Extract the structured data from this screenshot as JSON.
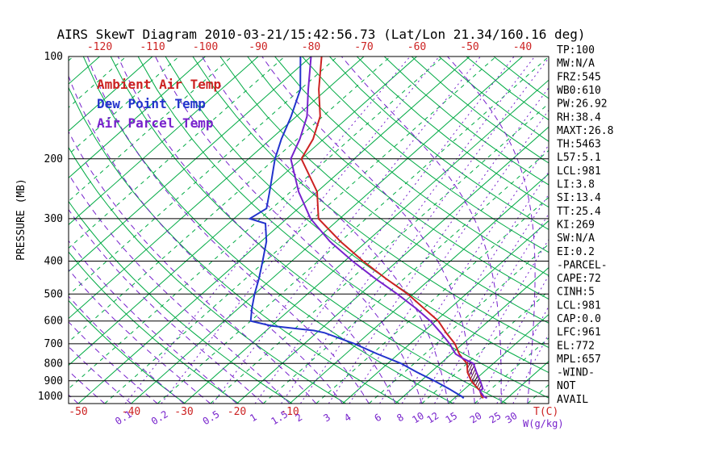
{
  "title": "AIRS SkewT Diagram 2010-03-21/15:42:56.73 (Lat/Lon 21.34/160.16 deg)",
  "legend": {
    "ambient": {
      "label": "Ambient Air Temp",
      "color": "#cc2222"
    },
    "dewpoint": {
      "label": "Dew Point Temp",
      "color": "#2233cc"
    },
    "parcel": {
      "label": "Air Parcel Temp",
      "color": "#7722cc"
    }
  },
  "axes": {
    "ylabel": "PRESSURE (MB)",
    "temp_unit_label": "T(C)",
    "mixing_unit_label": "W(g/kg)",
    "pressure_ticks": [
      100,
      200,
      300,
      400,
      500,
      600,
      700,
      800,
      900,
      1000
    ],
    "top_temp_ticks": [
      -120,
      -110,
      -100,
      -90,
      -80,
      -70,
      -60,
      -50,
      -40
    ],
    "bottom_temp_ticks": [
      -50,
      -40,
      -30,
      -20,
      -10
    ],
    "mixing_ratio_ticks": [
      0.1,
      0.2,
      0.5,
      1,
      1.5,
      2,
      3,
      4,
      6,
      8,
      10,
      12,
      15,
      20,
      25,
      30
    ],
    "temp_tick_color": "#cc2222",
    "mixing_tick_color": "#7722cc",
    "pressure_range_mb": [
      100,
      1050
    ]
  },
  "stats": [
    "TP:100",
    "MW:N/A",
    "FRZ:545",
    "WB0:610",
    "PW:26.92",
    "RH:38.4",
    "MAXT:26.8",
    "TH:5463",
    "L57:5.1",
    "LCL:981",
    "LI:3.8",
    "SI:13.4",
    "TT:25.4",
    "KI:269",
    "SW:N/A",
    "EI:0.2",
    "-PARCEL-",
    "CAPE:72",
    "CINH:5",
    "LCL:981",
    "CAP:0.0",
    "LFC:961",
    "EL:772",
    "MPL:657",
    "-WIND-",
    "NOT",
    "AVAIL"
  ],
  "chart_data": {
    "type": "line",
    "subtype": "skewt-logp",
    "title": "AIRS SkewT Diagram 2010-03-21/15:42:56.73 (Lat/Lon 21.34/160.16 deg)",
    "xlabel": "T(C)",
    "ylabel": "PRESSURE (MB)",
    "y_scale": "log",
    "ylim": [
      1050,
      100
    ],
    "series": [
      {
        "name": "Ambient Air Temp",
        "color": "#cc2222",
        "points_p_t": [
          [
            100,
            -78
          ],
          [
            125,
            -71.5
          ],
          [
            150,
            -65.5
          ],
          [
            175,
            -62
          ],
          [
            200,
            -60
          ],
          [
            250,
            -50
          ],
          [
            300,
            -44
          ],
          [
            350,
            -35
          ],
          [
            400,
            -26.5
          ],
          [
            450,
            -18.5
          ],
          [
            500,
            -11
          ],
          [
            550,
            -5
          ],
          [
            600,
            0.5
          ],
          [
            650,
            4.5
          ],
          [
            700,
            8.5
          ],
          [
            750,
            11.5
          ],
          [
            772,
            13
          ],
          [
            800,
            15
          ],
          [
            850,
            17
          ],
          [
            900,
            19.5
          ],
          [
            950,
            22.5
          ],
          [
            961,
            23.2
          ],
          [
            1000,
            24.8
          ],
          [
            1013,
            25.5
          ]
        ]
      },
      {
        "name": "Dew Point Temp",
        "color": "#2233cc",
        "points_p_t": [
          [
            100,
            -82
          ],
          [
            125,
            -75
          ],
          [
            150,
            -71
          ],
          [
            175,
            -68
          ],
          [
            200,
            -65
          ],
          [
            250,
            -59
          ],
          [
            280,
            -56
          ],
          [
            300,
            -57
          ],
          [
            310,
            -53
          ],
          [
            350,
            -49
          ],
          [
            400,
            -45.5
          ],
          [
            450,
            -42.5
          ],
          [
            500,
            -40
          ],
          [
            550,
            -37.5
          ],
          [
            600,
            -35
          ],
          [
            620,
            -30
          ],
          [
            640,
            -21
          ],
          [
            650,
            -18.5
          ],
          [
            700,
            -10.5
          ],
          [
            750,
            -4
          ],
          [
            800,
            2.5
          ],
          [
            850,
            7.5
          ],
          [
            900,
            12.5
          ],
          [
            950,
            17
          ],
          [
            1000,
            21
          ],
          [
            1013,
            21.8
          ]
        ]
      },
      {
        "name": "Air Parcel Temp",
        "color": "#7722cc",
        "points_p_t": [
          [
            100,
            -80
          ],
          [
            125,
            -73.5
          ],
          [
            150,
            -68
          ],
          [
            175,
            -64.5
          ],
          [
            200,
            -62
          ],
          [
            250,
            -53.5
          ],
          [
            300,
            -45.5
          ],
          [
            350,
            -37
          ],
          [
            400,
            -28.5
          ],
          [
            450,
            -20.5
          ],
          [
            500,
            -13
          ],
          [
            550,
            -6.5
          ],
          [
            600,
            -1
          ],
          [
            650,
            3.5
          ],
          [
            700,
            7.5
          ],
          [
            750,
            10.8
          ],
          [
            772,
            13
          ],
          [
            800,
            16.2
          ],
          [
            850,
            18.7
          ],
          [
            900,
            21.2
          ],
          [
            950,
            23.4
          ],
          [
            961,
            23.2
          ],
          [
            981,
            24.2
          ],
          [
            1000,
            25.2
          ],
          [
            1013,
            26.2
          ]
        ]
      }
    ],
    "cape_region": {
      "pressure_lfc": 961,
      "pressure_el": 772,
      "parcel_edge": [
        [
          772,
          13
        ],
        [
          800,
          16.2
        ],
        [
          850,
          18.7
        ],
        [
          900,
          21.2
        ],
        [
          950,
          23.4
        ],
        [
          961,
          23.2
        ]
      ],
      "ambient_edge": [
        [
          961,
          23.2
        ],
        [
          950,
          22.5
        ],
        [
          900,
          19.5
        ],
        [
          850,
          17
        ],
        [
          800,
          15
        ],
        [
          772,
          13
        ]
      ]
    },
    "background": {
      "isotherms_c": [
        -130,
        -120,
        -110,
        -100,
        -90,
        -80,
        -70,
        -60,
        -50,
        -40,
        -30,
        -20,
        -10,
        0,
        10,
        20,
        30,
        40
      ],
      "dry_adiabats_k": [
        240,
        250,
        260,
        270,
        280,
        290,
        300,
        310,
        320,
        330,
        340,
        350,
        360,
        370,
        380,
        390,
        400,
        410,
        420,
        430,
        440
      ],
      "moist_adiabats_start_c": [
        -60,
        -55,
        -50,
        -45,
        -40,
        -35,
        -30,
        -25,
        -20,
        -15,
        -10,
        -5,
        0,
        5,
        10,
        15,
        20,
        25,
        30,
        35,
        40
      ],
      "colors": {
        "isotherm": "#00aa44",
        "dry_adiabat": "#00aa44",
        "moist_adiabat": "#7722cc",
        "mixing_ratio": "#7722cc",
        "isobar": "#000000",
        "cape_hatch": "#551133"
      }
    }
  }
}
